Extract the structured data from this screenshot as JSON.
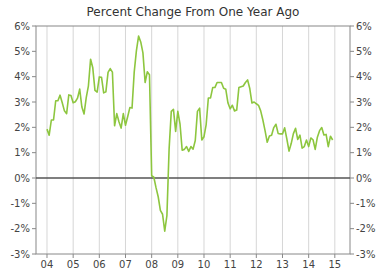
{
  "chart_data": {
    "type": "line",
    "title": "Percent Change From One Year Ago",
    "color": "#8dc63f",
    "grid": true,
    "xlim": [
      2003.58,
      2015.58
    ],
    "xticks": [
      {
        "value": 2004,
        "label": "04"
      },
      {
        "value": 2005,
        "label": "05"
      },
      {
        "value": 2006,
        "label": "06"
      },
      {
        "value": 2007,
        "label": "07"
      },
      {
        "value": 2008,
        "label": "08"
      },
      {
        "value": 2009,
        "label": "09"
      },
      {
        "value": 2010,
        "label": "10"
      },
      {
        "value": 2011,
        "label": "11"
      },
      {
        "value": 2012,
        "label": "12"
      },
      {
        "value": 2013,
        "label": "13"
      },
      {
        "value": 2014,
        "label": "14"
      },
      {
        "value": 2015,
        "label": "15"
      }
    ],
    "ylim": [
      -3,
      6
    ],
    "yticks": [
      {
        "value": -3,
        "label": "-3%"
      },
      {
        "value": -2,
        "label": "-2%"
      },
      {
        "value": -1,
        "label": "-1%"
      },
      {
        "value": 0,
        "label": "0%"
      },
      {
        "value": 1,
        "label": "1%"
      },
      {
        "value": 2,
        "label": "2%"
      },
      {
        "value": 3,
        "label": "3%"
      },
      {
        "value": 4,
        "label": "4%"
      },
      {
        "value": 5,
        "label": "5%"
      },
      {
        "value": 6,
        "label": "6%"
      }
    ],
    "x": [
      2004,
      2004.0833333333333,
      2004.1666666666667,
      2004.25,
      2004.3333333333333,
      2004.4166666666667,
      2004.5,
      2004.5833333333333,
      2004.6666666666667,
      2004.75,
      2004.8333333333333,
      2004.9166666666667,
      2005,
      2005.0833333333333,
      2005.1666666666667,
      2005.25,
      2005.3333333333333,
      2005.4166666666667,
      2005.5,
      2005.5833333333333,
      2005.6666666666667,
      2005.75,
      2005.8333333333333,
      2005.9166666666667,
      2006,
      2006.0833333333333,
      2006.1666666666667,
      2006.25,
      2006.3333333333333,
      2006.4166666666667,
      2006.5,
      2006.5833333333333,
      2006.6666666666667,
      2006.75,
      2006.8333333333333,
      2006.9166666666667,
      2007,
      2007.0833333333333,
      2007.1666666666667,
      2007.25,
      2007.3333333333333,
      2007.4166666666667,
      2007.5,
      2007.5833333333333,
      2007.6666666666667,
      2007.75,
      2007.8333333333333,
      2007.9166666666667,
      2008,
      2008.0833333333333,
      2008.1666666666667,
      2008.25,
      2008.3333333333333,
      2008.4166666666667,
      2008.5,
      2008.5833333333333,
      2008.6666666666667,
      2008.75,
      2008.8333333333333,
      2008.9166666666667,
      2009,
      2009.0833333333333,
      2009.1666666666667,
      2009.25,
      2009.3333333333333,
      2009.4166666666667,
      2009.5,
      2009.5833333333333,
      2009.6666666666667,
      2009.75,
      2009.8333333333333,
      2009.9166666666667,
      2010,
      2010.0833333333333,
      2010.1666666666667,
      2010.25,
      2010.3333333333333,
      2010.4166666666667,
      2010.5,
      2010.5833333333333,
      2010.6666666666667,
      2010.75,
      2010.8333333333333,
      2010.9166666666667,
      2011,
      2011.0833333333333,
      2011.1666666666667,
      2011.25,
      2011.3333333333333,
      2011.4166666666667,
      2011.5,
      2011.5833333333333,
      2011.6666666666667,
      2011.75,
      2011.8333333333333,
      2011.9166666666667,
      2012,
      2012.0833333333333,
      2012.1666666666667,
      2012.25,
      2012.3333333333333,
      2012.4166666666667,
      2012.5,
      2012.5833333333333,
      2012.6666666666667,
      2012.75,
      2012.8333333333333,
      2012.9166666666667,
      2013,
      2013.0833333333333,
      2013.1666666666667,
      2013.25,
      2013.3333333333333,
      2013.4166666666667,
      2013.5,
      2013.5833333333333,
      2013.6666666666667,
      2013.75,
      2013.8333333333333,
      2013.9166666666667,
      2014,
      2014.0833333333333,
      2014.1666666666667,
      2014.25,
      2014.3333333333333,
      2014.4166666666667,
      2014.5,
      2014.5833333333333,
      2014.6666666666667,
      2014.75,
      2014.8333333333333,
      2014.9166666666667
    ],
    "values": [
      1.93,
      1.69,
      2.29,
      2.29,
      3.05,
      3.05,
      3.27,
      2.97,
      2.65,
      2.54,
      3.28,
      3.26,
      2.97,
      3.01,
      3.15,
      3.51,
      2.8,
      2.53,
      3.17,
      3.64,
      4.69,
      4.35,
      3.46,
      3.39,
      3.99,
      3.98,
      3.36,
      3.4,
      4.17,
      4.32,
      4.18,
      2.06,
      2.54,
      2.22,
      1.97,
      2.54,
      2.08,
      2.42,
      2.78,
      2.76,
      4.18,
      5.02,
      5.6,
      5.37,
      4.94,
      3.77,
      4.19,
      4.08,
      0.09,
      0.03,
      -0.38,
      -0.74,
      -1.28,
      -1.43,
      -2.1,
      -1.48,
      1.14,
      2.63,
      2.71,
      1.84,
      2.63,
      2.14,
      1.1,
      1.13,
      1.24,
      1.05,
      1.24,
      1.14,
      1.48,
      2.63,
      2.76,
      1.5,
      1.63,
      2.11,
      3.16,
      3.16,
      3.57,
      3.57,
      3.77,
      3.77,
      3.77,
      3.54,
      3.5,
      2.96,
      2.73,
      2.87,
      2.65,
      2.68,
      3.57,
      3.6,
      3.63,
      3.77,
      3.87,
      3.53,
      2.96,
      3.0,
      2.93,
      2.87,
      2.65,
      2.29,
      1.87,
      1.41,
      1.66,
      1.69,
      1.99,
      2.12,
      1.76,
      1.74,
      1.74,
      1.98,
      1.54,
      1.06,
      1.36,
      1.75,
      1.96,
      1.52,
      1.69,
      1.18,
      1.24,
      1.5,
      1.24,
      1.58,
      1.51,
      1.13,
      1.61,
      1.87,
      1.99,
      1.7,
      1.72,
      1.24,
      1.65,
      1.5
    ]
  }
}
